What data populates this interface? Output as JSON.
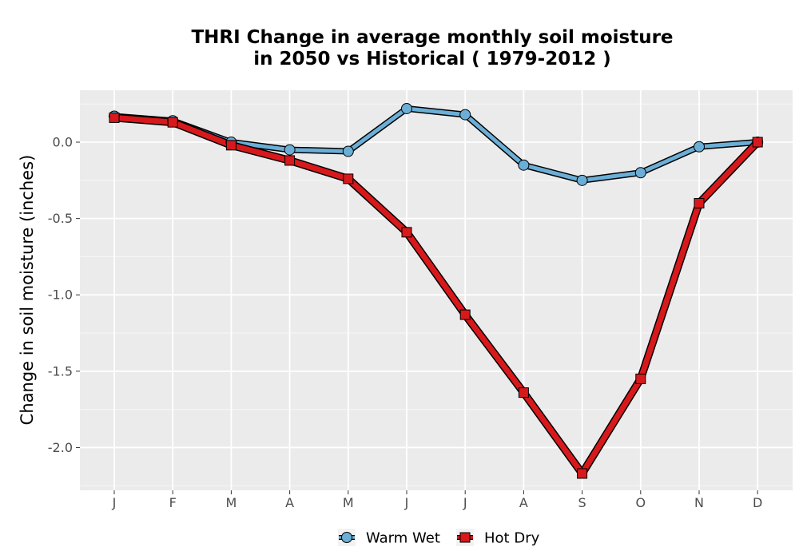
{
  "chart_data": {
    "type": "line",
    "title_line1": "THRI  Change in average monthly soil moisture",
    "title_line2": "in 2050 vs Historical ( 1979-2012 )",
    "ylabel": "Change in soil moisture (inches)",
    "xlabel": "",
    "categories": [
      "J",
      "F",
      "M",
      "A",
      "M",
      "J",
      "J",
      "A",
      "S",
      "O",
      "N",
      "D"
    ],
    "ylim": [
      -2.28,
      0.34
    ],
    "yticks": [
      0.0,
      -0.5,
      -1.0,
      -1.5,
      -2.0
    ],
    "ytick_labels": [
      "0.0",
      "-0.5",
      "-1.0",
      "-1.5",
      "-2.0"
    ],
    "grid": true,
    "legend_position": "bottom",
    "series": [
      {
        "name": "Warm Wet",
        "color": "#6baed6",
        "marker": "circle",
        "values": [
          0.17,
          0.14,
          0.0,
          -0.05,
          -0.06,
          0.22,
          0.18,
          -0.15,
          -0.25,
          -0.2,
          -0.03,
          0.0
        ]
      },
      {
        "name": "Hot Dry",
        "color": "#d7191c",
        "marker": "square",
        "values": [
          0.16,
          0.13,
          -0.02,
          -0.12,
          -0.24,
          -0.59,
          -1.13,
          -1.64,
          -2.17,
          -1.55,
          -0.4,
          0.0
        ]
      }
    ]
  }
}
